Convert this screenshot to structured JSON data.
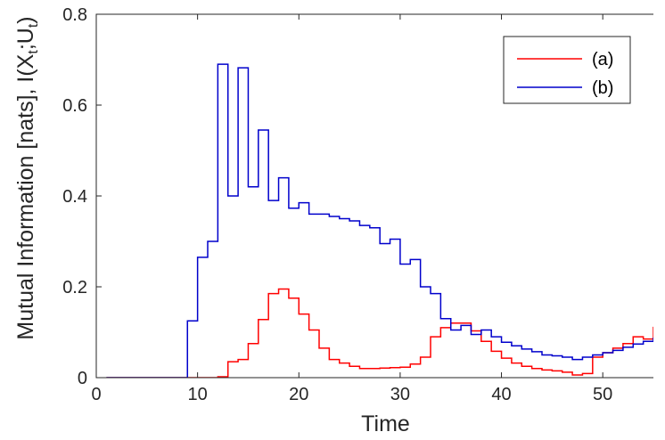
{
  "chart_data": {
    "type": "line",
    "step": true,
    "xlabel": "Time",
    "ylabel": {
      "parts": [
        "Mutual Information [nats], I(X",
        "t",
        ";U",
        "t",
        ")"
      ]
    },
    "xlim": [
      0,
      55
    ],
    "ylim": [
      0,
      0.8
    ],
    "xticks": [
      0,
      10,
      20,
      30,
      40,
      50
    ],
    "yticks": [
      0,
      0.2,
      0.4,
      0.6,
      0.8
    ],
    "xtick_labels": [
      "0",
      "10",
      "20",
      "30",
      "40",
      "50"
    ],
    "ytick_labels": [
      "0",
      "0.2",
      "0.4",
      "0.6",
      "0.8"
    ],
    "grid": false,
    "legend_position": "top-right",
    "x": [
      1,
      2,
      3,
      4,
      5,
      6,
      7,
      8,
      9,
      10,
      11,
      12,
      13,
      14,
      15,
      16,
      17,
      18,
      19,
      20,
      21,
      22,
      23,
      24,
      25,
      26,
      27,
      28,
      29,
      30,
      31,
      32,
      33,
      34,
      35,
      36,
      37,
      38,
      39,
      40,
      41,
      42,
      43,
      44,
      45,
      46,
      47,
      48,
      49,
      50,
      51,
      52,
      53,
      54,
      55
    ],
    "series": [
      {
        "name": "(a)",
        "color": "#ff0000",
        "values": [
          0,
          0,
          0,
          0,
          0,
          0,
          0,
          0,
          0,
          0,
          0,
          0.002,
          0.035,
          0.04,
          0.075,
          0.128,
          0.185,
          0.195,
          0.175,
          0.14,
          0.105,
          0.065,
          0.04,
          0.032,
          0.025,
          0.02,
          0.02,
          0.021,
          0.022,
          0.023,
          0.03,
          0.045,
          0.09,
          0.11,
          0.12,
          0.12,
          0.103,
          0.08,
          0.058,
          0.043,
          0.032,
          0.025,
          0.02,
          0.017,
          0.015,
          0.012,
          0.006,
          0.009,
          0.045,
          0.055,
          0.065,
          0.075,
          0.09,
          0.085,
          0.112
        ]
      },
      {
        "name": "(b)",
        "color": "#0000cc",
        "values": [
          0,
          0,
          0,
          0,
          0,
          0,
          0,
          0,
          0.125,
          0.265,
          0.3,
          0.69,
          0.4,
          0.682,
          0.42,
          0.545,
          0.39,
          0.44,
          0.373,
          0.385,
          0.36,
          0.36,
          0.355,
          0.35,
          0.345,
          0.335,
          0.33,
          0.295,
          0.305,
          0.25,
          0.26,
          0.2,
          0.185,
          0.13,
          0.105,
          0.115,
          0.095,
          0.105,
          0.09,
          0.078,
          0.07,
          0.063,
          0.057,
          0.05,
          0.048,
          0.045,
          0.04,
          0.045,
          0.05,
          0.055,
          0.06,
          0.067,
          0.074,
          0.08,
          0.088
        ]
      }
    ]
  }
}
